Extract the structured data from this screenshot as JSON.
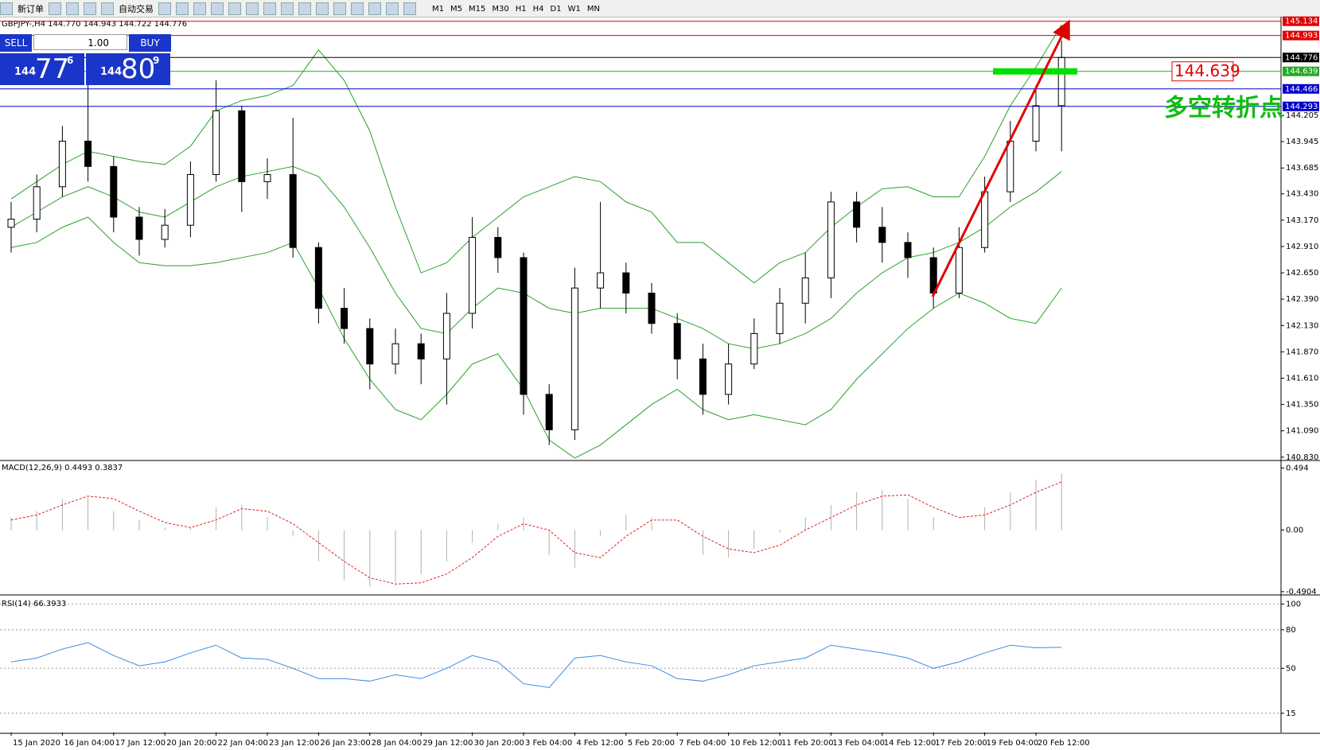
{
  "toolbar": {
    "new_order": "新订单",
    "auto_trading": "自动交易",
    "timeframes": [
      "M1",
      "M5",
      "M15",
      "M30",
      "H1",
      "H4",
      "D1",
      "W1",
      "MN"
    ]
  },
  "trade_panel": {
    "sell": "SELL",
    "buy": "BUY",
    "lots": "1.00",
    "sell_price": [
      "144",
      "77",
      "6"
    ],
    "buy_price": [
      "144",
      "80",
      "9"
    ]
  },
  "chart_data": [
    {
      "type": "candlestick",
      "title": "GBPJPY-,H4  144.770 144.943 144.722 144.776",
      "categories": [
        "15 Jan 2020",
        null,
        "16 Jan 04:00",
        null,
        "17 Jan 12:00",
        null,
        "20 Jan 20:00",
        null,
        "22 Jan 04:00",
        null,
        "23 Jan 12:00",
        null,
        "26 Jan 23:00",
        null,
        "28 Jan 04:00",
        null,
        "29 Jan 12:00",
        null,
        "30 Jan 20:00",
        null,
        "3 Feb 04:00",
        null,
        "4 Feb 12:00",
        null,
        "5 Feb 20:00",
        null,
        "7 Feb 04:00",
        null,
        "10 Feb 12:00",
        null,
        "11 Feb 20:00",
        null,
        "13 Feb 04:00",
        null,
        "14 Feb 12:00",
        null,
        "17 Feb 20:00",
        null,
        "19 Feb 04:00",
        null,
        "20 Feb 12:00",
        null
      ],
      "open": [
        143.1,
        143.18,
        143.5,
        143.95,
        143.7,
        143.2,
        142.98,
        143.12,
        143.62,
        144.25,
        143.55,
        143.62,
        142.9,
        142.3,
        142.1,
        141.75,
        141.95,
        141.8,
        142.25,
        143.0,
        142.8,
        141.45,
        141.1,
        142.5,
        142.65,
        142.45,
        142.15,
        141.8,
        141.45,
        141.75,
        142.05,
        142.35,
        142.6,
        143.35,
        143.1,
        142.95,
        142.8,
        142.45,
        142.9,
        143.45,
        143.95,
        144.3
      ],
      "high": [
        143.35,
        143.62,
        144.1,
        144.51,
        143.8,
        143.3,
        143.28,
        143.75,
        144.55,
        144.3,
        143.78,
        144.18,
        142.95,
        142.5,
        142.2,
        142.1,
        142.05,
        142.45,
        143.2,
        143.1,
        142.85,
        141.55,
        142.7,
        143.35,
        142.75,
        142.55,
        142.25,
        141.95,
        141.95,
        142.2,
        142.5,
        142.85,
        143.45,
        143.45,
        143.3,
        143.05,
        142.9,
        143.1,
        143.6,
        144.15,
        144.5,
        144.943
      ],
      "low": [
        142.85,
        143.05,
        143.4,
        143.55,
        143.05,
        142.82,
        142.9,
        143.0,
        143.55,
        143.25,
        143.38,
        142.8,
        142.15,
        141.95,
        141.5,
        141.65,
        141.55,
        141.35,
        142.1,
        142.65,
        141.25,
        140.95,
        141.0,
        142.3,
        142.25,
        142.05,
        141.6,
        141.25,
        141.35,
        141.7,
        141.95,
        142.15,
        142.4,
        142.95,
        142.75,
        142.6,
        142.3,
        142.4,
        142.85,
        143.35,
        143.85,
        143.85
      ],
      "close": [
        143.18,
        143.5,
        143.95,
        143.7,
        143.2,
        142.98,
        143.12,
        143.62,
        144.25,
        143.55,
        143.62,
        142.9,
        142.3,
        142.1,
        141.75,
        141.95,
        141.8,
        142.25,
        143.0,
        142.8,
        141.45,
        141.1,
        142.5,
        142.65,
        142.45,
        142.15,
        141.8,
        141.45,
        141.75,
        142.05,
        142.35,
        142.6,
        143.35,
        143.1,
        142.95,
        142.8,
        142.45,
        142.9,
        143.45,
        143.95,
        144.3,
        144.776
      ],
      "bands": {
        "color": "#2aa02a",
        "upper": [
          143.38,
          143.55,
          143.72,
          143.85,
          143.8,
          143.75,
          143.72,
          143.9,
          144.25,
          144.35,
          144.4,
          144.5,
          144.85,
          144.55,
          144.05,
          143.3,
          142.65,
          142.75,
          143.0,
          143.2,
          143.4,
          143.5,
          143.6,
          143.55,
          143.35,
          143.25,
          142.95,
          142.95,
          142.75,
          142.55,
          142.75,
          142.85,
          143.1,
          143.3,
          143.48,
          143.5,
          143.4,
          143.4,
          143.8,
          144.3,
          144.68,
          145.1
        ],
        "middle": [
          143.1,
          143.25,
          143.4,
          143.5,
          143.4,
          143.25,
          143.2,
          143.35,
          143.5,
          143.6,
          143.65,
          143.7,
          143.6,
          143.3,
          142.9,
          142.45,
          142.1,
          142.05,
          142.3,
          142.5,
          142.45,
          142.3,
          142.25,
          142.3,
          142.3,
          142.3,
          142.2,
          142.1,
          141.95,
          141.9,
          141.95,
          142.05,
          142.2,
          142.45,
          142.65,
          142.8,
          142.85,
          142.95,
          143.1,
          143.3,
          143.45,
          143.65
        ],
        "lower": [
          142.9,
          142.95,
          143.1,
          143.2,
          142.95,
          142.75,
          142.72,
          142.72,
          142.75,
          142.8,
          142.85,
          142.95,
          142.5,
          142.0,
          141.6,
          141.3,
          141.2,
          141.45,
          141.75,
          141.85,
          141.5,
          141.0,
          140.82,
          140.95,
          141.15,
          141.35,
          141.5,
          141.3,
          141.2,
          141.25,
          141.2,
          141.15,
          141.3,
          141.6,
          141.85,
          142.1,
          142.3,
          142.45,
          142.35,
          142.2,
          142.15,
          142.5
        ]
      },
      "ylim": [
        140.805,
        145.163
      ],
      "yticks": [
        {
          "value": 144.205,
          "label": "144.205"
        },
        {
          "value": 143.945,
          "label": "143.945"
        },
        {
          "value": 143.685,
          "label": "143.685"
        },
        {
          "value": 143.43,
          "label": "143.430"
        },
        {
          "value": 143.17,
          "label": "143.170"
        },
        {
          "value": 142.91,
          "label": "142.910"
        },
        {
          "value": 142.65,
          "label": "142.650"
        },
        {
          "value": 142.39,
          "label": "142.390"
        },
        {
          "value": 142.13,
          "label": "142.130"
        },
        {
          "value": 141.87,
          "label": "141.870"
        },
        {
          "value": 141.61,
          "label": "141.610"
        },
        {
          "value": 141.35,
          "label": "141.350"
        },
        {
          "value": 141.09,
          "label": "141.090"
        },
        {
          "value": 140.83,
          "label": "140.830"
        }
      ],
      "hlines": [
        {
          "value": 145.134,
          "color": "#e00000"
        },
        {
          "value": 144.993,
          "color": "#e00000"
        },
        {
          "value": 144.776,
          "color": "#000000"
        },
        {
          "value": 144.639,
          "color": "#22aa22"
        },
        {
          "value": 144.466,
          "color": "#0000cc"
        },
        {
          "value": 144.293,
          "color": "#0000cc"
        }
      ],
      "annotations": [
        "144.639",
        "多空转折点"
      ]
    },
    {
      "type": "macd",
      "title": "MACD(12,26,9) 0.4493 0.3837",
      "histogram": {
        "color": "#b0b0b0",
        "values": [
          0.1,
          0.15,
          0.25,
          0.26,
          0.15,
          0.08,
          0.02,
          0.02,
          0.18,
          0.2,
          0.1,
          -0.05,
          -0.25,
          -0.4,
          -0.45,
          -0.42,
          -0.35,
          -0.25,
          -0.1,
          0.05,
          0.1,
          -0.2,
          -0.3,
          -0.05,
          0.12,
          0.1,
          0.0,
          -0.2,
          -0.22,
          -0.15,
          -0.02,
          0.1,
          0.2,
          0.3,
          0.32,
          0.25,
          0.1,
          0.0,
          0.18,
          0.3,
          0.4,
          0.4493
        ]
      },
      "signal": {
        "color": "#e02020",
        "values": [
          0.08,
          0.12,
          0.2,
          0.27,
          0.25,
          0.15,
          0.06,
          0.02,
          0.08,
          0.17,
          0.15,
          0.05,
          -0.1,
          -0.25,
          -0.38,
          -0.43,
          -0.42,
          -0.35,
          -0.22,
          -0.05,
          0.05,
          0.0,
          -0.18,
          -0.22,
          -0.05,
          0.08,
          0.08,
          -0.05,
          -0.15,
          -0.18,
          -0.12,
          0.0,
          0.1,
          0.2,
          0.27,
          0.28,
          0.18,
          0.1,
          0.12,
          0.2,
          0.3,
          0.3837
        ]
      },
      "ylim": [
        -0.51,
        0.541
      ],
      "yticks": [
        0.494,
        {
          "value": 0,
          "label": "0.00"
        },
        -0.4904
      ]
    },
    {
      "type": "rsi",
      "title": "RSI(14) 66.3933",
      "color": "#3a8ee6",
      "values": [
        55,
        58,
        65,
        70,
        60,
        52,
        55,
        62,
        68,
        58,
        57,
        50,
        42,
        42,
        40,
        45,
        42,
        50,
        60,
        55,
        38,
        35,
        58,
        60,
        55,
        52,
        42,
        40,
        45,
        52,
        55,
        58,
        68,
        65,
        62,
        58,
        50,
        55,
        62,
        68,
        66,
        66.3933
      ],
      "ylim": [
        0,
        104.7
      ],
      "yticks": [
        15,
        50,
        80,
        100
      ],
      "grid": true
    }
  ]
}
